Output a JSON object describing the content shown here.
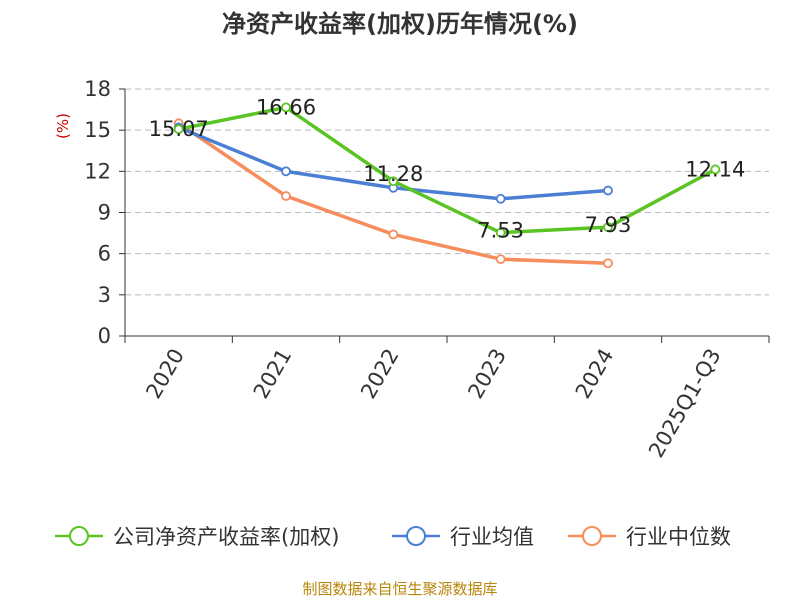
{
  "chart_data": {
    "type": "line",
    "title": "净资产收益率(加权)历年情况(%)",
    "ylabel": "(%)",
    "categories": [
      "2020",
      "2021",
      "2022",
      "2023",
      "2024",
      "2025Q1-Q3"
    ],
    "yticks": [
      0,
      3,
      6,
      9,
      12,
      15,
      18
    ],
    "ylim": [
      0,
      18
    ],
    "grid": true,
    "legend_position": "bottom",
    "series": [
      {
        "name": "公司净资产收益率(加权)",
        "color": "#5bc425",
        "values": [
          15.07,
          16.66,
          11.28,
          7.53,
          7.93,
          12.14
        ],
        "labels": [
          "15.07",
          "16.66",
          "11.28",
          "7.53",
          "7.93",
          "12.14"
        ]
      },
      {
        "name": "行业均值",
        "color": "#4a7fd4",
        "values": [
          15.2,
          12.0,
          10.8,
          10.0,
          10.6,
          null
        ]
      },
      {
        "name": "行业中位数",
        "color": "#f68d5c",
        "values": [
          15.5,
          10.2,
          7.4,
          5.6,
          5.3,
          null
        ]
      }
    ]
  },
  "source": "制图数据来自恒生聚源数据库"
}
